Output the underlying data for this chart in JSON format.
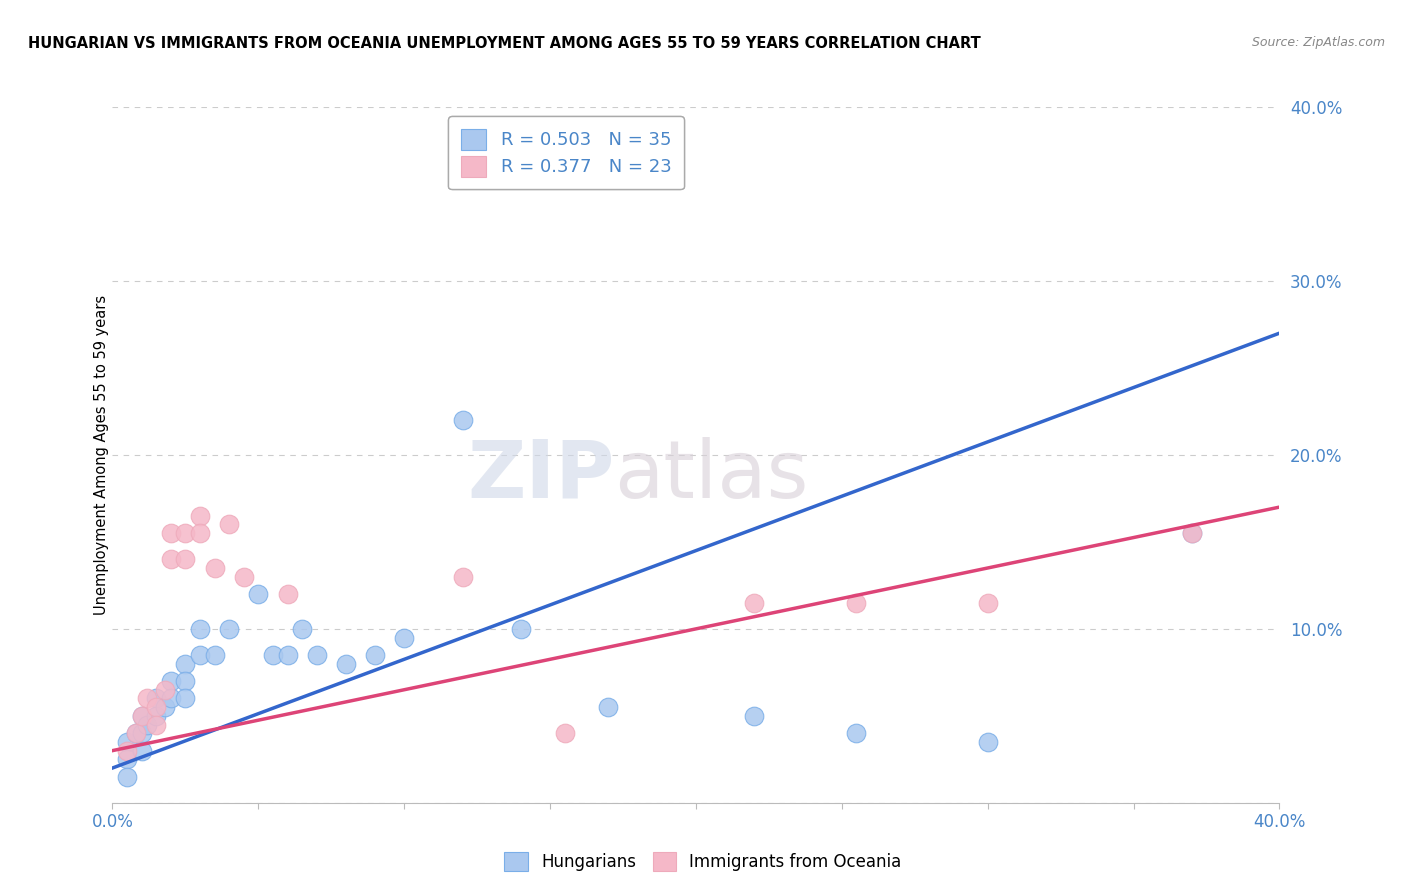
{
  "title": "HUNGARIAN VS IMMIGRANTS FROM OCEANIA UNEMPLOYMENT AMONG AGES 55 TO 59 YEARS CORRELATION CHART",
  "source": "Source: ZipAtlas.com",
  "ylabel": "Unemployment Among Ages 55 to 59 years",
  "xlim": [
    0.0,
    0.4
  ],
  "ylim": [
    0.0,
    0.4
  ],
  "grid_color": "#cccccc",
  "bg_color": "#ffffff",
  "blue_fill": "#aac8ef",
  "blue_edge": "#7aaee8",
  "pink_fill": "#f5b8c8",
  "pink_edge": "#eeaabb",
  "blue_line_color": "#3366cc",
  "pink_line_color": "#dd4477",
  "R_blue": 0.503,
  "N_blue": 35,
  "R_pink": 0.377,
  "N_pink": 23,
  "blue_points": [
    [
      0.005,
      0.035
    ],
    [
      0.005,
      0.025
    ],
    [
      0.005,
      0.015
    ],
    [
      0.008,
      0.04
    ],
    [
      0.01,
      0.05
    ],
    [
      0.01,
      0.04
    ],
    [
      0.01,
      0.03
    ],
    [
      0.012,
      0.045
    ],
    [
      0.015,
      0.06
    ],
    [
      0.015,
      0.05
    ],
    [
      0.018,
      0.055
    ],
    [
      0.02,
      0.07
    ],
    [
      0.02,
      0.06
    ],
    [
      0.025,
      0.08
    ],
    [
      0.025,
      0.07
    ],
    [
      0.025,
      0.06
    ],
    [
      0.03,
      0.1
    ],
    [
      0.03,
      0.085
    ],
    [
      0.035,
      0.085
    ],
    [
      0.04,
      0.1
    ],
    [
      0.05,
      0.12
    ],
    [
      0.055,
      0.085
    ],
    [
      0.06,
      0.085
    ],
    [
      0.065,
      0.1
    ],
    [
      0.07,
      0.085
    ],
    [
      0.08,
      0.08
    ],
    [
      0.09,
      0.085
    ],
    [
      0.1,
      0.095
    ],
    [
      0.12,
      0.22
    ],
    [
      0.14,
      0.1
    ],
    [
      0.17,
      0.055
    ],
    [
      0.22,
      0.05
    ],
    [
      0.255,
      0.04
    ],
    [
      0.3,
      0.035
    ],
    [
      0.37,
      0.155
    ]
  ],
  "pink_points": [
    [
      0.005,
      0.03
    ],
    [
      0.008,
      0.04
    ],
    [
      0.01,
      0.05
    ],
    [
      0.012,
      0.06
    ],
    [
      0.015,
      0.055
    ],
    [
      0.015,
      0.045
    ],
    [
      0.018,
      0.065
    ],
    [
      0.02,
      0.155
    ],
    [
      0.02,
      0.14
    ],
    [
      0.025,
      0.155
    ],
    [
      0.025,
      0.14
    ],
    [
      0.03,
      0.165
    ],
    [
      0.03,
      0.155
    ],
    [
      0.035,
      0.135
    ],
    [
      0.04,
      0.16
    ],
    [
      0.045,
      0.13
    ],
    [
      0.06,
      0.12
    ],
    [
      0.12,
      0.13
    ],
    [
      0.155,
      0.04
    ],
    [
      0.22,
      0.115
    ],
    [
      0.255,
      0.115
    ],
    [
      0.3,
      0.115
    ],
    [
      0.37,
      0.155
    ]
  ],
  "blue_trend_x": [
    0.0,
    0.4
  ],
  "blue_trend_y": [
    0.02,
    0.27
  ],
  "pink_trend_x": [
    0.0,
    0.4
  ],
  "pink_trend_y": [
    0.03,
    0.17
  ]
}
